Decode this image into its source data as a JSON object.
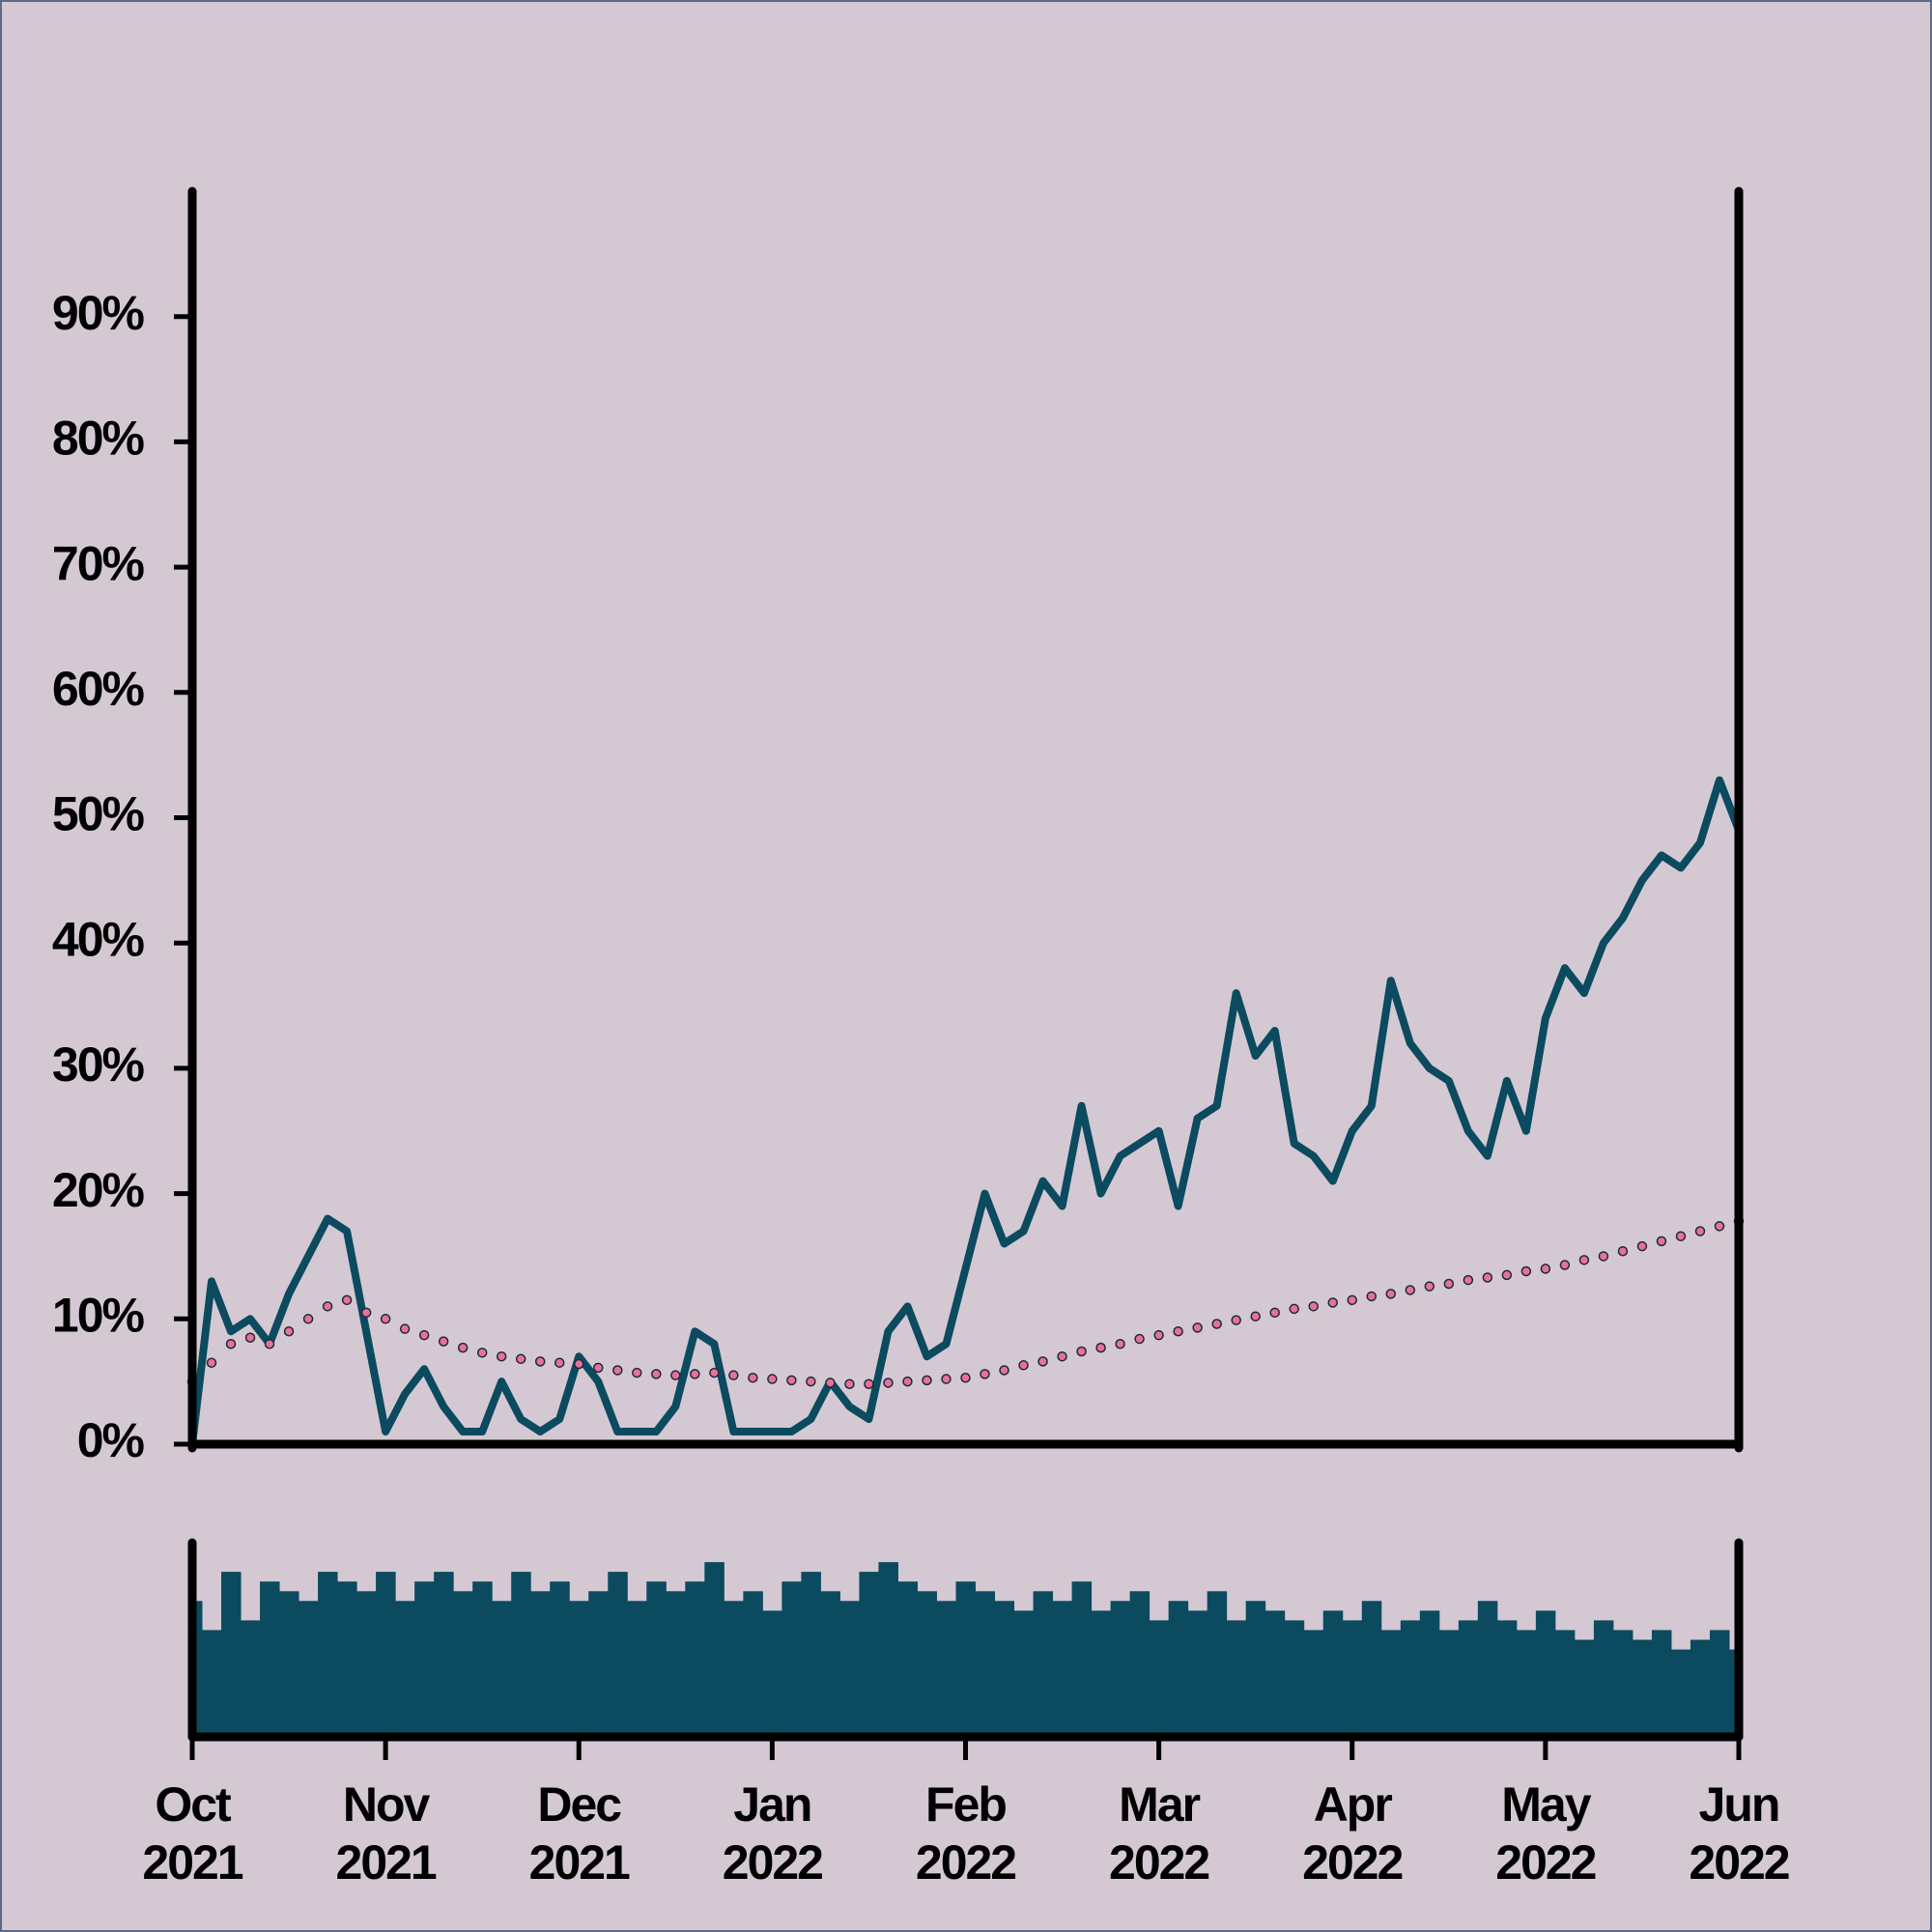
{
  "chart_data": [
    {
      "type": "line",
      "x": [
        0,
        0.1,
        0.2,
        0.3,
        0.4,
        0.5,
        0.6,
        0.7,
        0.8,
        0.9,
        1,
        1.1,
        1.2,
        1.3,
        1.4,
        1.5,
        1.6,
        1.7,
        1.8,
        1.9,
        2,
        2.1,
        2.2,
        2.3,
        2.4,
        2.5,
        2.6,
        2.7,
        2.8,
        2.9,
        3,
        3.1,
        3.2,
        3.3,
        3.4,
        3.5,
        3.6,
        3.7,
        3.8,
        3.9,
        4,
        4.1,
        4.2,
        4.3,
        4.4,
        4.5,
        4.6,
        4.7,
        4.8,
        4.9,
        5,
        5.1,
        5.2,
        5.3,
        5.4,
        5.5,
        5.6,
        5.7,
        5.8,
        5.9,
        6,
        6.1,
        6.2,
        6.3,
        6.4,
        6.5,
        6.6,
        6.7,
        6.8,
        6.9,
        7,
        7.1,
        7.2,
        7.3,
        7.4,
        7.5,
        7.6,
        7.7,
        7.8,
        7.9,
        8
      ],
      "series": [
        {
          "color": "#0b4a5f",
          "values": [
            0,
            13,
            9,
            10,
            8,
            12,
            15,
            18,
            17,
            9,
            1,
            4,
            6,
            3,
            1,
            1,
            5,
            2,
            1,
            2,
            7,
            5,
            1,
            1,
            1,
            3,
            9,
            8,
            1,
            1,
            1,
            1,
            2,
            5,
            3,
            2,
            9,
            11,
            7,
            8,
            14,
            20,
            16,
            17,
            21,
            19,
            27,
            20,
            23,
            24,
            25,
            19,
            26,
            27,
            36,
            31,
            33,
            24,
            23,
            21,
            25,
            27,
            37,
            32,
            30,
            29,
            25,
            23,
            29,
            25,
            34,
            38,
            36,
            40,
            42,
            45,
            47,
            46,
            48,
            53,
            49
          ]
        },
        {
          "color": "#e8709a",
          "values": [
            5,
            6.5,
            8,
            8.5,
            8,
            9,
            10,
            11,
            11.5,
            10.5,
            10,
            9.2,
            8.7,
            8.2,
            7.7,
            7.3,
            7,
            6.8,
            6.6,
            6.5,
            6.4,
            6.1,
            5.9,
            5.7,
            5.6,
            5.5,
            5.6,
            5.7,
            5.5,
            5.3,
            5.2,
            5.1,
            5,
            4.9,
            4.8,
            4.8,
            4.9,
            5,
            5.1,
            5.2,
            5.3,
            5.6,
            5.9,
            6.3,
            6.6,
            7,
            7.4,
            7.7,
            8,
            8.4,
            8.7,
            9,
            9.3,
            9.6,
            9.9,
            10.2,
            10.5,
            10.8,
            11,
            11.3,
            11.5,
            11.8,
            12,
            12.3,
            12.6,
            12.8,
            13.1,
            13.3,
            13.5,
            13.8,
            14,
            14.3,
            14.7,
            15,
            15.4,
            15.8,
            16.2,
            16.6,
            17,
            17.4,
            17.8
          ]
        }
      ],
      "xlim": [
        0,
        8
      ],
      "ylim": [
        0,
        100
      ],
      "yticks": [
        {
          "value": 0,
          "label": "0%"
        },
        {
          "value": 10,
          "label": "10%"
        },
        {
          "value": 20,
          "label": "20%"
        },
        {
          "value": 30,
          "label": "30%"
        },
        {
          "value": 40,
          "label": "40%"
        },
        {
          "value": 50,
          "label": "50%"
        },
        {
          "value": 60,
          "label": "60%"
        },
        {
          "value": 70,
          "label": "70%"
        },
        {
          "value": 80,
          "label": "80%"
        },
        {
          "value": 90,
          "label": "90%"
        }
      ]
    },
    {
      "type": "bar",
      "x": [
        0,
        0.1,
        0.2,
        0.3,
        0.4,
        0.5,
        0.6,
        0.7,
        0.8,
        0.9,
        1,
        1.1,
        1.2,
        1.3,
        1.4,
        1.5,
        1.6,
        1.7,
        1.8,
        1.9,
        2,
        2.1,
        2.2,
        2.3,
        2.4,
        2.5,
        2.6,
        2.7,
        2.8,
        2.9,
        3,
        3.1,
        3.2,
        3.3,
        3.4,
        3.5,
        3.6,
        3.7,
        3.8,
        3.9,
        4,
        4.1,
        4.2,
        4.3,
        4.4,
        4.5,
        4.6,
        4.7,
        4.8,
        4.9,
        5,
        5.1,
        5.2,
        5.3,
        5.4,
        5.5,
        5.6,
        5.7,
        5.8,
        5.9,
        6,
        6.1,
        6.2,
        6.3,
        6.4,
        6.5,
        6.6,
        6.7,
        6.8,
        6.9,
        7,
        7.1,
        7.2,
        7.3,
        7.4,
        7.5,
        7.6,
        7.7,
        7.8,
        7.9,
        8
      ],
      "values": [
        70,
        55,
        85,
        60,
        80,
        75,
        70,
        85,
        80,
        75,
        85,
        70,
        80,
        85,
        75,
        80,
        70,
        85,
        75,
        80,
        70,
        75,
        85,
        70,
        80,
        75,
        80,
        90,
        70,
        75,
        65,
        80,
        85,
        75,
        70,
        85,
        90,
        80,
        75,
        70,
        80,
        75,
        70,
        65,
        75,
        70,
        80,
        65,
        70,
        75,
        60,
        70,
        65,
        75,
        60,
        70,
        65,
        60,
        55,
        65,
        60,
        70,
        55,
        60,
        65,
        55,
        60,
        70,
        60,
        55,
        65,
        55,
        50,
        60,
        55,
        50,
        55,
        45,
        50,
        55,
        45
      ],
      "color": "#0b4a5f",
      "xlim": [
        0,
        8
      ],
      "ylim": [
        0,
        100
      ],
      "xticks": [
        {
          "value": 0,
          "label": "Oct\n2021"
        },
        {
          "value": 1,
          "label": "Nov\n2021"
        },
        {
          "value": 2,
          "label": "Dec\n2021"
        },
        {
          "value": 3,
          "label": "Jan\n2022"
        },
        {
          "value": 4,
          "label": "Feb\n2022"
        },
        {
          "value": 5,
          "label": "Mar\n2022"
        },
        {
          "value": 6,
          "label": "Apr\n2022"
        },
        {
          "value": 7,
          "label": "May\n2022"
        },
        {
          "value": 8,
          "label": "Jun\n2022"
        }
      ]
    }
  ]
}
